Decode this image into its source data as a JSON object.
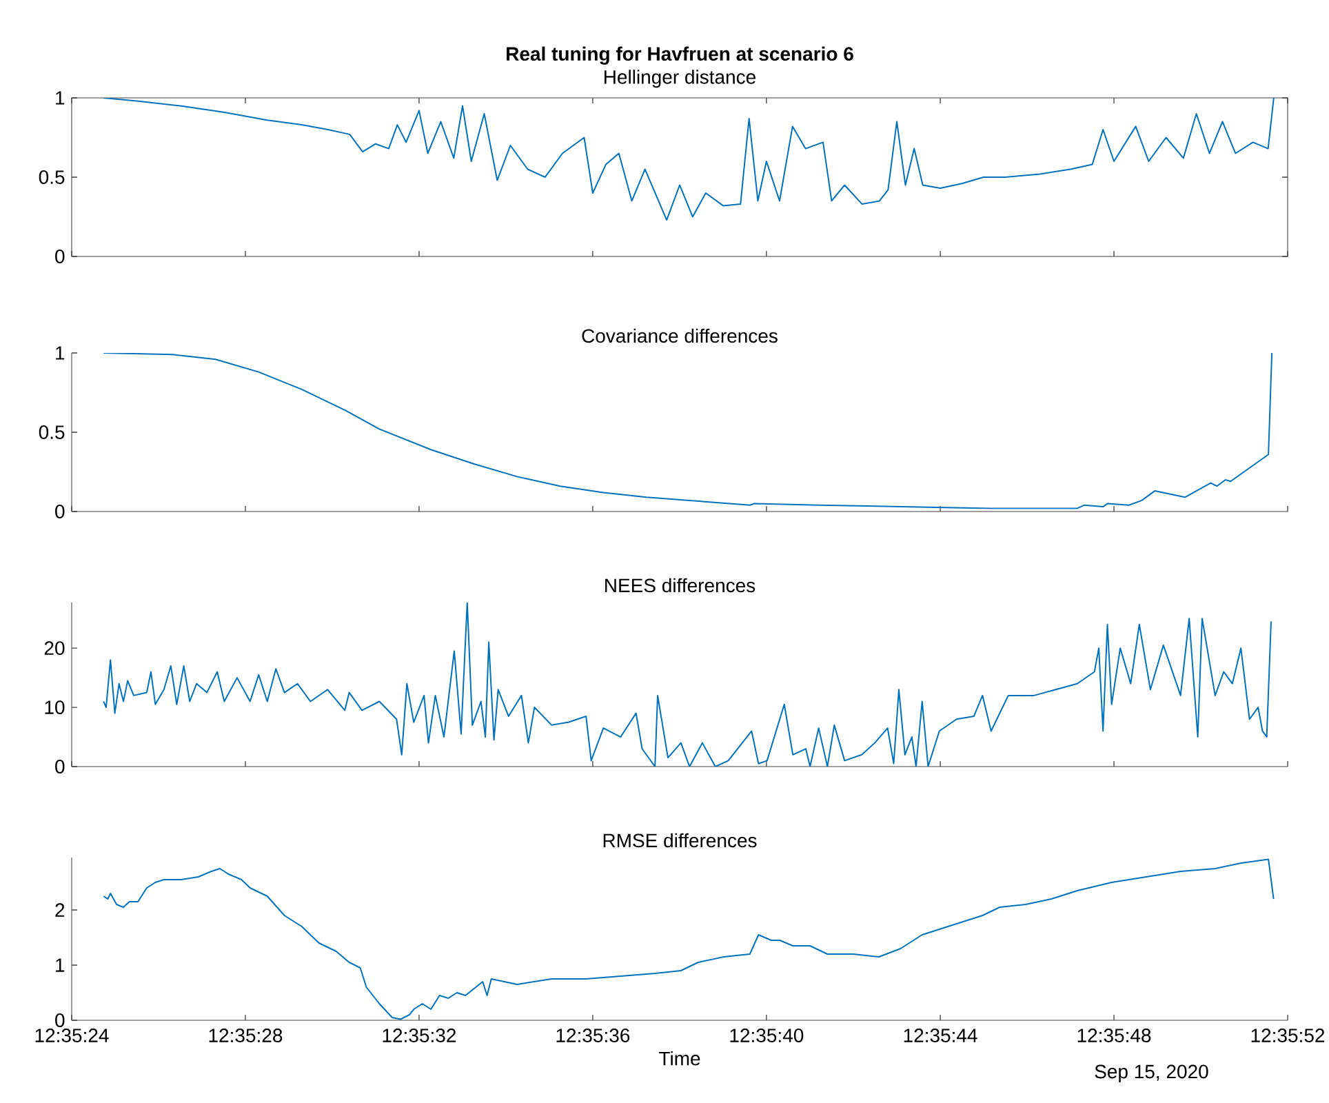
{
  "chart_data": [
    {
      "type": "line",
      "title": "Real tuning for Havfruen at scenario 6",
      "subtitle": "Hellinger distance",
      "color": "#0072bd",
      "tick_labels": "y",
      "x": [
        12.590203,
        12.590417,
        12.590694,
        12.590972,
        12.59125,
        12.591472,
        12.591639,
        12.591778,
        12.591861,
        12.591944,
        12.592028,
        12.592083,
        12.592139,
        12.592222,
        12.592278,
        12.592361,
        12.592444,
        12.5925,
        12.592556,
        12.592639,
        12.592722,
        12.592806,
        12.592917,
        12.593028,
        12.593139,
        12.593278,
        12.593333,
        12.593417,
        12.5935,
        12.593583,
        12.593667,
        12.593806,
        12.593889,
        12.593972,
        12.594056,
        12.594167,
        12.594278,
        12.594333,
        12.594389,
        12.594444,
        12.594528,
        12.594611,
        12.594694,
        12.594806,
        12.594861,
        12.594944,
        12.595056,
        12.595167,
        12.595222,
        12.595278,
        12.595333,
        12.595389,
        12.595444,
        12.595556,
        12.595694,
        12.595833,
        12.595972,
        12.596194,
        12.596389,
        12.596528,
        12.596597,
        12.596667,
        12.596806,
        12.596889,
        12.597,
        12.597111,
        12.597194,
        12.597278,
        12.597361,
        12.597444,
        12.597556,
        12.597653,
        12.597689
      ],
      "values": [
        1.0,
        0.98,
        0.95,
        0.91,
        0.86,
        0.83,
        0.8,
        0.77,
        0.66,
        0.71,
        0.68,
        0.83,
        0.72,
        0.92,
        0.65,
        0.85,
        0.62,
        0.95,
        0.6,
        0.9,
        0.48,
        0.7,
        0.55,
        0.5,
        0.65,
        0.75,
        0.4,
        0.58,
        0.65,
        0.35,
        0.55,
        0.23,
        0.45,
        0.25,
        0.4,
        0.32,
        0.33,
        0.87,
        0.35,
        0.6,
        0.35,
        0.82,
        0.68,
        0.72,
        0.35,
        0.45,
        0.33,
        0.35,
        0.42,
        0.85,
        0.45,
        0.68,
        0.45,
        0.43,
        0.46,
        0.5,
        0.5,
        0.52,
        0.55,
        0.58,
        0.8,
        0.6,
        0.82,
        0.6,
        0.75,
        0.62,
        0.9,
        0.65,
        0.85,
        0.65,
        0.72,
        0.68,
        1.0
      ],
      "xlim": [
        12.59,
        12.597778
      ],
      "ylim": [
        0,
        1
      ],
      "yticks": [
        0,
        0.5,
        1
      ],
      "xticks": [
        {
          "value": 12.59,
          "label": null
        },
        {
          "value": 12.591111,
          "label": null
        },
        {
          "value": 12.592222,
          "label": null
        },
        {
          "value": 12.593333,
          "label": null
        },
        {
          "value": 12.594444,
          "label": null
        },
        {
          "value": 12.595556,
          "label": null
        },
        {
          "value": 12.596667,
          "label": null
        },
        {
          "value": 12.597778,
          "label": null
        }
      ]
    },
    {
      "type": "line",
      "title": "Covariance differences",
      "color": "#0072bd",
      "tick_labels": "y",
      "x": [
        12.590204,
        12.590645,
        12.59092,
        12.591196,
        12.591472,
        12.591747,
        12.591968,
        12.592298,
        12.592574,
        12.592849,
        12.593125,
        12.593401,
        12.593676,
        12.593952,
        12.594338,
        12.594365,
        12.594779,
        12.59533,
        12.595881,
        12.596432,
        12.596476,
        12.596597,
        12.596625,
        12.596763,
        12.596845,
        12.596928,
        12.597121,
        12.597286,
        12.597325,
        12.59738,
        12.597413,
        12.597655,
        12.597677
      ],
      "values": [
        1.0,
        0.99,
        0.96,
        0.88,
        0.77,
        0.64,
        0.52,
        0.39,
        0.3,
        0.22,
        0.16,
        0.12,
        0.09,
        0.07,
        0.04,
        0.05,
        0.04,
        0.03,
        0.02,
        0.02,
        0.04,
        0.03,
        0.05,
        0.04,
        0.07,
        0.13,
        0.09,
        0.18,
        0.16,
        0.2,
        0.19,
        0.36,
        1.0
      ],
      "xlim": [
        12.59,
        12.597778
      ],
      "ylim": [
        0,
        1
      ],
      "yticks": [
        0,
        0.5,
        1
      ],
      "xticks": [
        {
          "value": 12.59,
          "label": null
        },
        {
          "value": 12.591111,
          "label": null
        },
        {
          "value": 12.592222,
          "label": null
        },
        {
          "value": 12.593333,
          "label": null
        },
        {
          "value": 12.594444,
          "label": null
        },
        {
          "value": 12.595556,
          "label": null
        },
        {
          "value": 12.596667,
          "label": null
        },
        {
          "value": 12.597778,
          "label": null
        }
      ]
    },
    {
      "type": "line",
      "title": "NEES differences",
      "color": "#0072bd",
      "tick_labels": "y",
      "x": [
        12.590204,
        12.59022,
        12.590248,
        12.590276,
        12.590303,
        12.590331,
        12.590358,
        12.590397,
        12.59048,
        12.590507,
        12.590535,
        12.59059,
        12.590634,
        12.590672,
        12.590717,
        12.590755,
        12.590799,
        12.590865,
        12.590931,
        12.590976,
        12.591058,
        12.591141,
        12.591196,
        12.591251,
        12.591306,
        12.591361,
        12.591444,
        12.591527,
        12.591637,
        12.591747,
        12.591775,
        12.591857,
        12.591968,
        12.592078,
        12.592111,
        12.592144,
        12.592188,
        12.592254,
        12.592282,
        12.592326,
        12.592381,
        12.592447,
        12.592491,
        12.59253,
        12.592563,
        12.592618,
        12.592646,
        12.592668,
        12.592701,
        12.592728,
        12.592794,
        12.592877,
        12.592921,
        12.59296,
        12.59307,
        12.59318,
        12.59329,
        12.593323,
        12.593401,
        12.593511,
        12.59361,
        12.593649,
        12.593731,
        12.593748,
        12.593814,
        12.593897,
        12.593952,
        12.594034,
        12.594117,
        12.5942,
        12.594349,
        12.594393,
        12.594448,
        12.594558,
        12.594613,
        12.594696,
        12.594723,
        12.594778,
        12.594834,
        12.594878,
        12.594944,
        12.595054,
        12.595137,
        12.595219,
        12.595258,
        12.595291,
        12.59533,
        12.595374,
        12.595401,
        12.59544,
        12.595478,
        12.59555,
        12.59566,
        12.595771,
        12.595826,
        12.595881,
        12.595991,
        12.596156,
        12.596432,
        12.596542,
        12.59657,
        12.596597,
        12.596625,
        12.596652,
        12.596707,
        12.596774,
        12.596829,
        12.5969,
        12.596983,
        12.597093,
        12.597148,
        12.597203,
        12.597231,
        12.597314,
        12.597369,
        12.597424,
        12.597479,
        12.597534,
        12.597589,
        12.597617,
        12.597644,
        12.597672
      ],
      "values": [
        11,
        10,
        18,
        9,
        14,
        11,
        14.5,
        12,
        12.5,
        16,
        10.5,
        13,
        17,
        10.5,
        17,
        11,
        14,
        12.5,
        16,
        11,
        15,
        11,
        15.5,
        11,
        16.5,
        12.5,
        14,
        11,
        13,
        9.5,
        12.5,
        9.5,
        11,
        8,
        2,
        14,
        7.5,
        12,
        4,
        12,
        5,
        19.5,
        5.5,
        27.7,
        7,
        11,
        5,
        21,
        4.5,
        13,
        8.5,
        12,
        4,
        10,
        7,
        7.5,
        8.5,
        1,
        6.5,
        5,
        9,
        3,
        0,
        12,
        1.5,
        4,
        0,
        4,
        0,
        1,
        6,
        0.5,
        1,
        10.5,
        2,
        3,
        0,
        6.5,
        0,
        7,
        1,
        2,
        4,
        6.5,
        0.5,
        13,
        2,
        5,
        0,
        11,
        0,
        6,
        8,
        8.5,
        12,
        6,
        12,
        12,
        14,
        16,
        20,
        6,
        24,
        10.5,
        20,
        14,
        24,
        13,
        20.5,
        12,
        25,
        5,
        25,
        12,
        16,
        14,
        20,
        8,
        10,
        6,
        5,
        24.5
      ],
      "xlim": [
        12.59,
        12.597778
      ],
      "ylim": [
        0,
        27.7
      ],
      "yticks": [
        0,
        10,
        20
      ],
      "xticks": [
        {
          "value": 12.59,
          "label": null
        },
        {
          "value": 12.591111,
          "label": null
        },
        {
          "value": 12.592222,
          "label": null
        },
        {
          "value": 12.593333,
          "label": null
        },
        {
          "value": 12.594444,
          "label": null
        },
        {
          "value": 12.595556,
          "label": null
        },
        {
          "value": 12.596667,
          "label": null
        },
        {
          "value": 12.597778,
          "label": null
        }
      ]
    },
    {
      "type": "line",
      "title": "RMSE differences",
      "xlabel": "Time",
      "color": "#0072bd",
      "annotations": [
        "Sep 15, 2020"
      ],
      "x": [
        12.590204,
        12.590231,
        12.590248,
        12.590287,
        12.590331,
        12.590369,
        12.590424,
        12.59048,
        12.590535,
        12.59059,
        12.5907,
        12.59081,
        12.590893,
        12.590948,
        12.591003,
        12.591086,
        12.591141,
        12.591251,
        12.591361,
        12.591472,
        12.591582,
        12.591692,
        12.591775,
        12.591846,
        12.591885,
        12.591968,
        12.59205,
        12.592105,
        12.59216,
        12.592188,
        12.592243,
        12.592298,
        12.592353,
        12.592409,
        12.592464,
        12.592519,
        12.592563,
        12.592629,
        12.592657,
        12.592684,
        12.592849,
        12.59307,
        12.59329,
        12.593511,
        12.593731,
        12.593897,
        12.594007,
        12.594172,
        12.594338,
        12.594393,
        12.594475,
        12.59453,
        12.594613,
        12.594723,
        12.594834,
        12.594999,
        12.595164,
        12.595302,
        12.59544,
        12.595605,
        12.595826,
        12.595936,
        12.596101,
        12.596267,
        12.596432,
        12.596652,
        12.596873,
        12.597093,
        12.597314,
        12.597479,
        12.597655,
        12.597688
      ],
      "values": [
        2.25,
        2.2,
        2.3,
        2.1,
        2.05,
        2.15,
        2.15,
        2.4,
        2.5,
        2.55,
        2.55,
        2.6,
        2.7,
        2.75,
        2.65,
        2.55,
        2.4,
        2.25,
        1.9,
        1.7,
        1.4,
        1.25,
        1.05,
        0.95,
        0.6,
        0.3,
        0.05,
        0.02,
        0.1,
        0.2,
        0.3,
        0.2,
        0.45,
        0.4,
        0.5,
        0.45,
        0.55,
        0.7,
        0.45,
        0.75,
        0.65,
        0.75,
        0.75,
        0.8,
        0.85,
        0.9,
        1.05,
        1.15,
        1.2,
        1.55,
        1.45,
        1.45,
        1.35,
        1.35,
        1.2,
        1.2,
        1.15,
        1.3,
        1.55,
        1.7,
        1.9,
        2.05,
        2.1,
        2.2,
        2.35,
        2.5,
        2.6,
        2.7,
        2.75,
        2.85,
        2.92,
        2.2
      ],
      "xlim": [
        12.59,
        12.597778
      ],
      "ylim": [
        0,
        2.95
      ],
      "yticks": [
        0,
        1,
        2
      ],
      "xticks": [
        {
          "value": 12.59,
          "label": "12:35:24"
        },
        {
          "value": 12.591111,
          "label": "12:35:28"
        },
        {
          "value": 12.592222,
          "label": "12:35:32"
        },
        {
          "value": 12.593333,
          "label": "12:35:36"
        },
        {
          "value": 12.594444,
          "label": "12:35:40"
        },
        {
          "value": 12.595556,
          "label": "12:35:44"
        },
        {
          "value": 12.596667,
          "label": "12:35:48"
        },
        {
          "value": 12.597778,
          "label": "12:35:52"
        }
      ]
    }
  ]
}
